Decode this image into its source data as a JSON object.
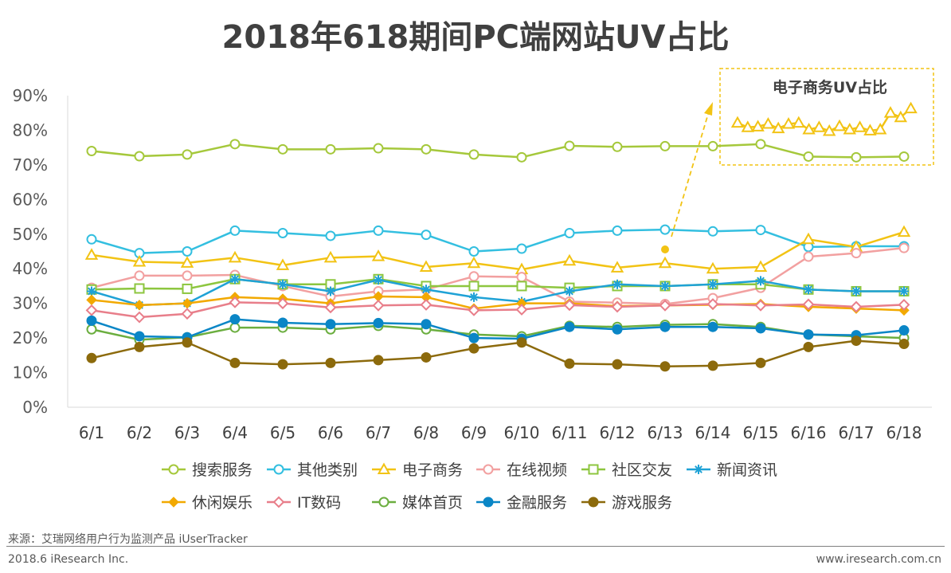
{
  "title": "2018年618期间PC端网站UV占比",
  "source": "来源：艾瑞网络用户行为监测产品 iUserTracker",
  "copyright": "2018.6 iResearch Inc.",
  "website": "www.iresearch.com.cn",
  "chart_data": {
    "type": "line",
    "title": "2018年618期间PC端网站UV占比",
    "categories": [
      "6/1",
      "6/2",
      "6/3",
      "6/4",
      "6/5",
      "6/6",
      "6/7",
      "6/8",
      "6/9",
      "6/10",
      "6/11",
      "6/12",
      "6/13",
      "6/14",
      "6/15",
      "6/16",
      "6/17",
      "6/18"
    ],
    "y_ticks": [
      "0%",
      "10%",
      "20%",
      "30%",
      "40%",
      "50%",
      "60%",
      "70%",
      "80%",
      "90%"
    ],
    "ylim": [
      0,
      90
    ],
    "grid": false,
    "legend_position": "bottom",
    "series": [
      {
        "name": "搜索服务",
        "color": "#A5C83B",
        "marker": "circle-open",
        "values": [
          74,
          72.5,
          73,
          76,
          74.5,
          74.5,
          74.8,
          74.5,
          73,
          72.2,
          75.5,
          75.2,
          75.4,
          75.4,
          76,
          72.4,
          72.2,
          72.4
        ]
      },
      {
        "name": "其他类别",
        "color": "#33BFE0",
        "marker": "circle-open",
        "values": [
          48.5,
          44.5,
          45,
          51,
          50.3,
          49.5,
          51,
          49.8,
          45,
          45.8,
          50.3,
          51,
          51.3,
          50.8,
          51.2,
          46.3,
          46.5,
          46.5
        ]
      },
      {
        "name": "电子商务",
        "color": "#F2C314",
        "marker": "triangle-open",
        "values": [
          44,
          42,
          41.7,
          43.2,
          41,
          43.2,
          43.6,
          40.5,
          41.6,
          39.8,
          42.3,
          40.3,
          41.6,
          40,
          40.5,
          48.5,
          46.3,
          50.6
        ]
      },
      {
        "name": "在线视频",
        "color": "#F2A0A0",
        "marker": "circle-open",
        "values": [
          34.5,
          38,
          38,
          38.2,
          35,
          32,
          33.5,
          34,
          37.8,
          37.6,
          30.5,
          30.2,
          29.8,
          31.5,
          34.5,
          43.5,
          44.5,
          46
        ]
      },
      {
        "name": "社区交友",
        "color": "#8DC63F",
        "marker": "square-open",
        "values": [
          34,
          34.3,
          34.2,
          37,
          35.5,
          35.5,
          37,
          35,
          35,
          35,
          34.5,
          35,
          35,
          35.5,
          35.5,
          34,
          33.5,
          33.5
        ]
      },
      {
        "name": "新闻资讯",
        "color": "#1FA2D6",
        "marker": "asterisk",
        "values": [
          33.5,
          29.5,
          30,
          37,
          35.5,
          33.5,
          36.8,
          34,
          31.8,
          30.5,
          33.5,
          35.5,
          35,
          35.5,
          36.5,
          34,
          33.5,
          33.5
        ]
      },
      {
        "name": "休闲娱乐",
        "color": "#F2A900",
        "marker": "diamond",
        "values": [
          31,
          29.5,
          30,
          31.8,
          31.3,
          30,
          32,
          31.8,
          28.5,
          30,
          30,
          29.2,
          29.4,
          29.6,
          29.8,
          29,
          28.5,
          28
        ]
      },
      {
        "name": "IT数码",
        "color": "#E87E8A",
        "marker": "diamond-open",
        "values": [
          28,
          26,
          27,
          30.3,
          30,
          28.8,
          29.4,
          29.6,
          28,
          28.2,
          29.5,
          29,
          29.4,
          29.8,
          29.4,
          29.7,
          29,
          29.6
        ]
      },
      {
        "name": "媒体首页",
        "color": "#6BAE3F",
        "marker": "circle-open",
        "values": [
          22.5,
          19.5,
          20.2,
          23,
          23,
          22.5,
          23.5,
          22.5,
          21,
          20.5,
          23.5,
          23.2,
          23.8,
          24,
          23.2,
          21,
          20.5,
          20
        ]
      },
      {
        "name": "金融服务",
        "color": "#0A86C6",
        "marker": "circle",
        "values": [
          25,
          20.5,
          20.2,
          25.4,
          24.4,
          24,
          24.3,
          24,
          20,
          19.8,
          23.2,
          22.5,
          23.2,
          23.2,
          22.8,
          21,
          20.8,
          22.2
        ]
      },
      {
        "name": "游戏服务",
        "color": "#8C6A0C",
        "marker": "circle",
        "values": [
          14.2,
          17.4,
          18.7,
          12.8,
          12.4,
          12.8,
          13.6,
          14.4,
          17,
          18.7,
          12.6,
          12.4,
          11.8,
          12,
          12.8,
          17.4,
          19.2,
          18.3
        ]
      }
    ],
    "inset": {
      "title": "电子商务UV占比",
      "series_name": "电子商务",
      "color": "#F2C314",
      "marker": "triangle-open",
      "values": [
        81.5,
        79.5,
        79.8,
        81,
        79,
        81,
        81.5,
        78.5,
        79.5,
        77.8,
        80,
        78.5,
        79.5,
        78,
        78.5,
        86,
        84,
        88
      ]
    }
  }
}
